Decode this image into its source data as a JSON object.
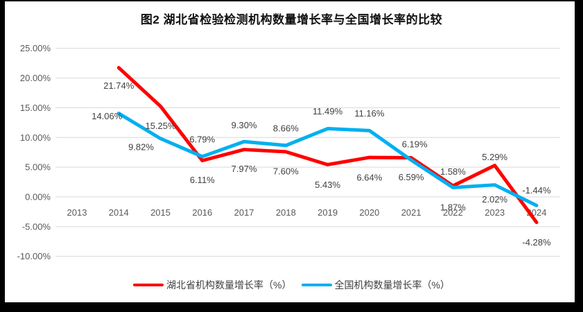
{
  "frame": {
    "border_color": "#000000"
  },
  "chart_data": {
    "type": "line",
    "title": "图2 湖北省检验检测机构数量增长率与全国增长率的比较",
    "categories": [
      "2013",
      "2014",
      "2015",
      "2016",
      "2017",
      "2018",
      "2019",
      "2020",
      "2021",
      "2022",
      "2023",
      "2024"
    ],
    "series": [
      {
        "name": "湖北省机构数量增长率（%）",
        "color": "#FF0000",
        "values": [
          null,
          21.74,
          15.25,
          6.11,
          7.97,
          7.6,
          5.43,
          6.64,
          6.59,
          1.87,
          5.29,
          -4.28
        ],
        "labels": [
          "",
          "21.74%",
          "15.25%",
          "6.11%",
          "7.97%",
          "7.60%",
          "5.43%",
          "6.64%",
          "6.59%",
          "1.87%",
          "5.29%",
          "-4.28%"
        ],
        "label_offsets": [
          [
            0,
            0
          ],
          [
            0,
            26
          ],
          [
            0,
            28
          ],
          [
            0,
            28
          ],
          [
            0,
            28
          ],
          [
            0,
            28
          ],
          [
            0,
            29
          ],
          [
            0,
            29
          ],
          [
            0,
            28
          ],
          [
            0,
            31
          ],
          [
            0,
            -12
          ],
          [
            0,
            29
          ]
        ]
      },
      {
        "name": "全国机构数量增长率（%）",
        "color": "#00B0F0",
        "values": [
          null,
          14.06,
          9.82,
          6.79,
          9.3,
          8.66,
          11.49,
          11.16,
          6.19,
          1.58,
          2.02,
          -1.44
        ],
        "labels": [
          "",
          "14.06%",
          "9.82%",
          "6.79%",
          "9.30%",
          "8.66%",
          "11.49%",
          "11.16%",
          "6.19%",
          "1.58%",
          "2.02%",
          "-1.44%"
        ],
        "label_offsets": [
          [
            0,
            0
          ],
          [
            -17,
            4
          ],
          [
            -28,
            12
          ],
          [
            0,
            -25
          ],
          [
            0,
            -24
          ],
          [
            0,
            -25
          ],
          [
            0,
            -25
          ],
          [
            0,
            -25
          ],
          [
            5,
            -23
          ],
          [
            0,
            -23
          ],
          [
            0,
            21
          ],
          [
            0,
            -22
          ]
        ]
      }
    ],
    "y_axis": {
      "ticks": [
        {
          "label": "25.00%",
          "value": 25
        },
        {
          "label": "20.00%",
          "value": 20
        },
        {
          "label": "15.00%",
          "value": 15
        },
        {
          "label": "10.00%",
          "value": 10
        },
        {
          "label": "5.00%",
          "value": 5
        },
        {
          "label": "0.00%",
          "value": 0
        },
        {
          "label": "-5.00%",
          "value": -5
        },
        {
          "label": "-10.00%",
          "value": -10
        }
      ]
    },
    "ylim": [
      -10,
      25
    ],
    "grid": true,
    "legend_position": "bottom",
    "colors": {
      "gridline": "#D9D9D9",
      "axis_text": "#595959",
      "data_label_text": "#404040",
      "title_text": "#111111"
    }
  }
}
